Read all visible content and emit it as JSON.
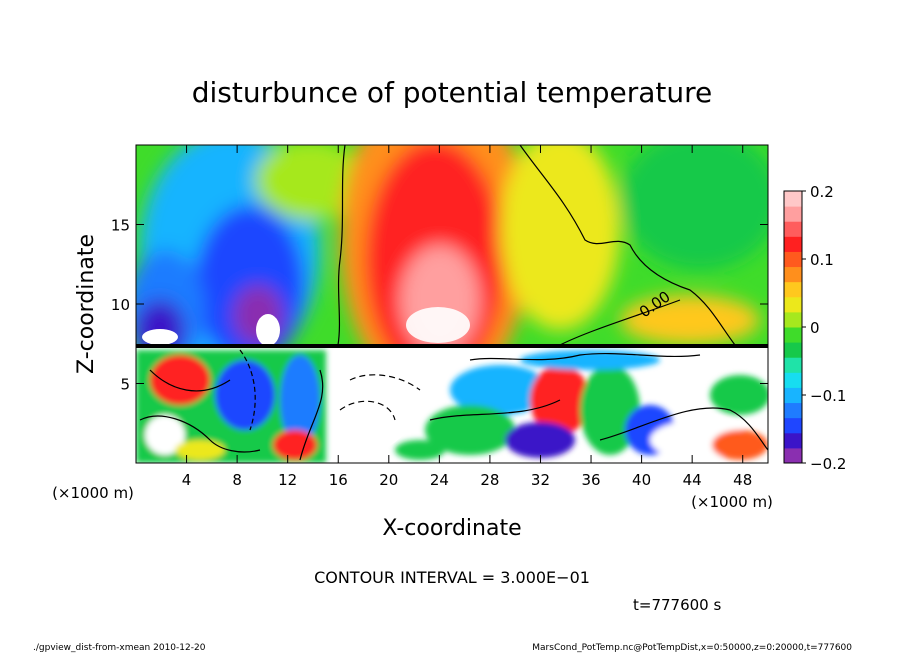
{
  "chart_data": {
    "type": "heatmap",
    "title": "disturbunce of potential temperature",
    "xlabel": "X-coordinate",
    "ylabel": "Z-coordinate",
    "x_unit": "(×1000 m)",
    "y_unit": "(×1000 m)",
    "xlim": [
      0,
      50
    ],
    "ylim": [
      0,
      20
    ],
    "x_ticks": [
      "4",
      "8",
      "12",
      "16",
      "20",
      "24",
      "28",
      "32",
      "36",
      "40",
      "44",
      "48"
    ],
    "y_ticks": [
      "5",
      "10",
      "15"
    ],
    "colorbar": {
      "range": [
        -0.2,
        0.2
      ],
      "labels": [
        "0.2",
        "0.1",
        "0",
        "−0.1",
        "−0.2"
      ],
      "colors": [
        "#8a2fb0",
        "#3b14c8",
        "#1f46ff",
        "#1f7cff",
        "#18b4ff",
        "#17ddf0",
        "#1fe3a8",
        "#16c94a",
        "#3fdc2a",
        "#a6e81e",
        "#ece81b",
        "#ffc81e",
        "#ff8f1c",
        "#ff5a1e",
        "#ff2020",
        "#ff5d5d",
        "#ff9f9f",
        "#ffc8c8"
      ]
    },
    "contour_label": "0.00",
    "contour_interval": "CONTOUR INTERVAL = 3.000E−01",
    "time_label": "t=777600 s",
    "footer_left": "./gpview_dist-from-xmean   2010-12-20",
    "footer_right": "MarsCond_PotTemp.nc@PotTempDist,x=0:50000,z=0:20000,t=777600"
  }
}
